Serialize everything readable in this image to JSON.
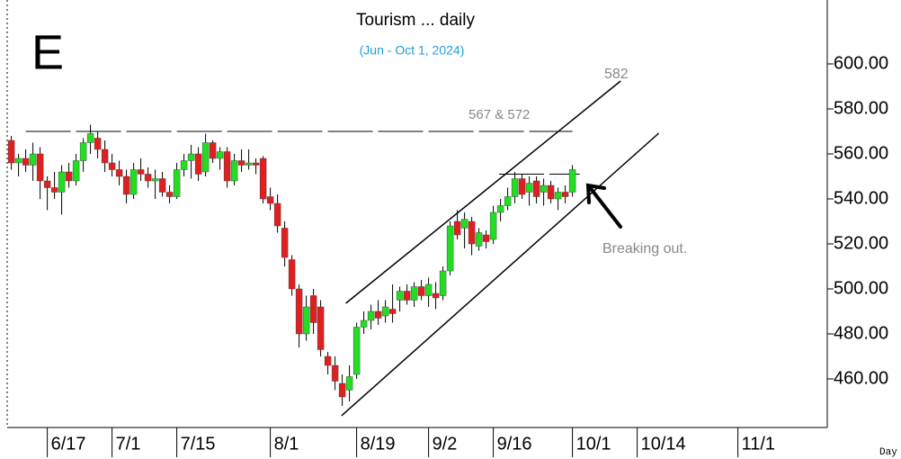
{
  "chart_data": {
    "type": "candlestick",
    "title": "Tourism ... daily",
    "subtitle": "(Jun - Oct 1, 2024)",
    "panel_letter": "E",
    "x_axis_label": "Day",
    "up_color": "#22dd22",
    "down_color": "#e02020",
    "open": [
      566,
      556,
      558,
      555,
      560,
      548,
      545,
      543,
      552,
      548,
      557,
      565,
      567,
      562,
      556,
      553,
      550,
      542,
      553,
      551,
      548,
      549,
      543,
      541,
      553,
      557,
      560,
      552,
      565,
      558,
      561,
      548,
      557,
      555,
      556,
      558,
      541,
      538,
      527,
      513,
      500,
      480,
      497,
      492,
      470,
      466,
      458,
      455,
      462,
      483,
      486,
      490,
      488,
      491,
      495,
      499,
      495,
      501,
      497,
      498,
      497,
      508,
      530,
      527,
      530,
      519,
      524,
      522,
      534,
      537,
      541,
      549,
      543,
      548,
      543,
      546,
      540,
      543,
      543
    ],
    "high": [
      568,
      560,
      562,
      565,
      563,
      550,
      552,
      555,
      556,
      560,
      567,
      573,
      570,
      566,
      560,
      557,
      553,
      556,
      558,
      554,
      553,
      552,
      546,
      556,
      560,
      564,
      563,
      569,
      566,
      563,
      563,
      560,
      562,
      562,
      558,
      559,
      545,
      542,
      530,
      515,
      502,
      497,
      500,
      495,
      472,
      470,
      462,
      466,
      485,
      490,
      493,
      495,
      495,
      502,
      501,
      502,
      503,
      504,
      505,
      503,
      510,
      530,
      535,
      534,
      532,
      527,
      526,
      537,
      540,
      545,
      552,
      551,
      550,
      550,
      549,
      548,
      545,
      546,
      555
    ],
    "low": [
      553,
      550,
      552,
      548,
      540,
      535,
      540,
      533,
      545,
      546,
      552,
      560,
      558,
      552,
      550,
      546,
      538,
      540,
      548,
      545,
      540,
      541,
      538,
      540,
      550,
      549,
      548,
      550,
      556,
      553,
      545,
      546,
      552,
      553,
      551,
      538,
      535,
      525,
      510,
      497,
      474,
      477,
      480,
      470,
      462,
      455,
      448,
      450,
      460,
      480,
      482,
      484,
      485,
      485,
      490,
      493,
      492,
      495,
      492,
      491,
      495,
      506,
      522,
      518,
      515,
      517,
      518,
      520,
      530,
      535,
      538,
      540,
      537,
      538,
      537,
      538,
      535,
      538,
      541
    ],
    "close": [
      556,
      558,
      555,
      560,
      548,
      545,
      543,
      552,
      548,
      557,
      565,
      569,
      562,
      556,
      553,
      550,
      542,
      553,
      551,
      548,
      549,
      543,
      541,
      553,
      557,
      560,
      551,
      565,
      558,
      561,
      548,
      557,
      555,
      556,
      555,
      540,
      538,
      528,
      514,
      500,
      480,
      492,
      485,
      473,
      466,
      459,
      452,
      461,
      483,
      486,
      490,
      487,
      492,
      489,
      499,
      495,
      501,
      497,
      502,
      496,
      508,
      528,
      524,
      531,
      520,
      525,
      521,
      534,
      537,
      541,
      549,
      542,
      547,
      541,
      546,
      540,
      543,
      541,
      553
    ],
    "xlim": [
      -0.5,
      113.5
    ],
    "xticks": [
      {
        "value": 5,
        "label": "6/17"
      },
      {
        "value": 14,
        "label": "7/1"
      },
      {
        "value": 23,
        "label": "7/15"
      },
      {
        "value": 36,
        "label": "8/1"
      },
      {
        "value": 48,
        "label": "8/19"
      },
      {
        "value": 58,
        "label": "9/2"
      },
      {
        "value": 67,
        "label": "9/16"
      },
      {
        "value": 78,
        "label": "10/1"
      },
      {
        "value": 87,
        "label": "10/14"
      },
      {
        "value": 101,
        "label": "11/1"
      }
    ],
    "ylim": [
      438.4,
      628.4
    ],
    "yticks": [
      {
        "value": 460,
        "label": "460.00"
      },
      {
        "value": 480,
        "label": "480.00"
      },
      {
        "value": 500,
        "label": "500.00"
      },
      {
        "value": 520,
        "label": "520.00"
      },
      {
        "value": 540,
        "label": "540.00"
      },
      {
        "value": 560,
        "label": "560.00"
      },
      {
        "value": 580,
        "label": "580.00"
      },
      {
        "value": 600,
        "label": "600.00"
      }
    ],
    "hlines": [
      {
        "value": 570,
        "from": 2,
        "to": 78
      },
      {
        "value": 551,
        "from": 67.8,
        "to": 79
      }
    ],
    "trendlines": [
      {
        "x": [
          46.5,
          84.7
        ],
        "y": [
          493.6,
          592.4
        ]
      },
      {
        "x": [
          45.9,
          90
        ],
        "y": [
          443.6,
          569.2
        ]
      }
    ],
    "annotations": [
      "582",
      "567 & 572",
      "Breaking out."
    ]
  }
}
